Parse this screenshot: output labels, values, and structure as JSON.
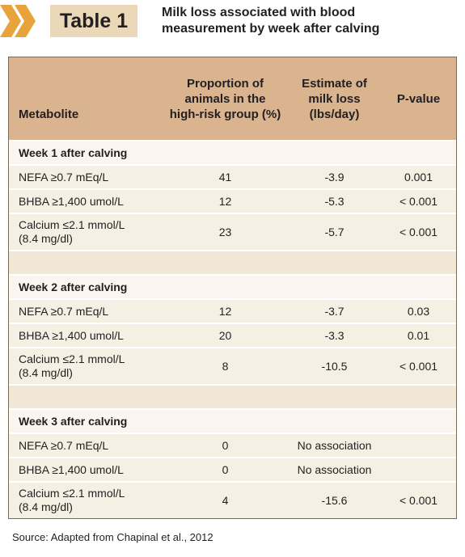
{
  "header": {
    "label": "Table 1",
    "title": "Milk loss associated with blood measurement by week after calving"
  },
  "table": {
    "columns": [
      "Metabolite",
      "Proportion of animals in the high-risk group (%)",
      "Estimate of milk loss (lbs/day)",
      "P-value"
    ],
    "sections": [
      {
        "title": "Week 1 after calving",
        "rows": [
          [
            "NEFA ≥0.7 mEq/L",
            41,
            -3.9,
            0.001
          ],
          [
            "BHBA ≥1,400 umol/L",
            12,
            -5.3,
            "< 0.001"
          ],
          [
            "Calcium ≤2.1 mmol/L\n(8.4 mg/dl)",
            23,
            -5.7,
            "< 0.001"
          ]
        ]
      },
      {
        "title": "Week 2 after calving",
        "rows": [
          [
            "NEFA ≥0.7 mEq/L",
            12,
            -3.7,
            0.03
          ],
          [
            "BHBA ≥1,400 umol/L",
            20,
            -3.3,
            0.01
          ],
          [
            "Calcium ≤2.1 mmol/L\n(8.4 mg/dl)",
            8,
            -10.5,
            "< 0.001"
          ]
        ]
      },
      {
        "title": "Week 3 after calving",
        "rows": [
          [
            "NEFA ≥0.7 mEq/L",
            0,
            "No association"
          ],
          [
            "BHBA ≥1,400 umol/L",
            0,
            "No association"
          ],
          [
            "Calcium ≤2.1 mmol/L\n(8.4 mg/dl)",
            4,
            -15.6,
            "< 0.001"
          ]
        ]
      }
    ]
  },
  "footer": {
    "source": "Source: Adapted from Chapinal et al., 2012"
  }
}
